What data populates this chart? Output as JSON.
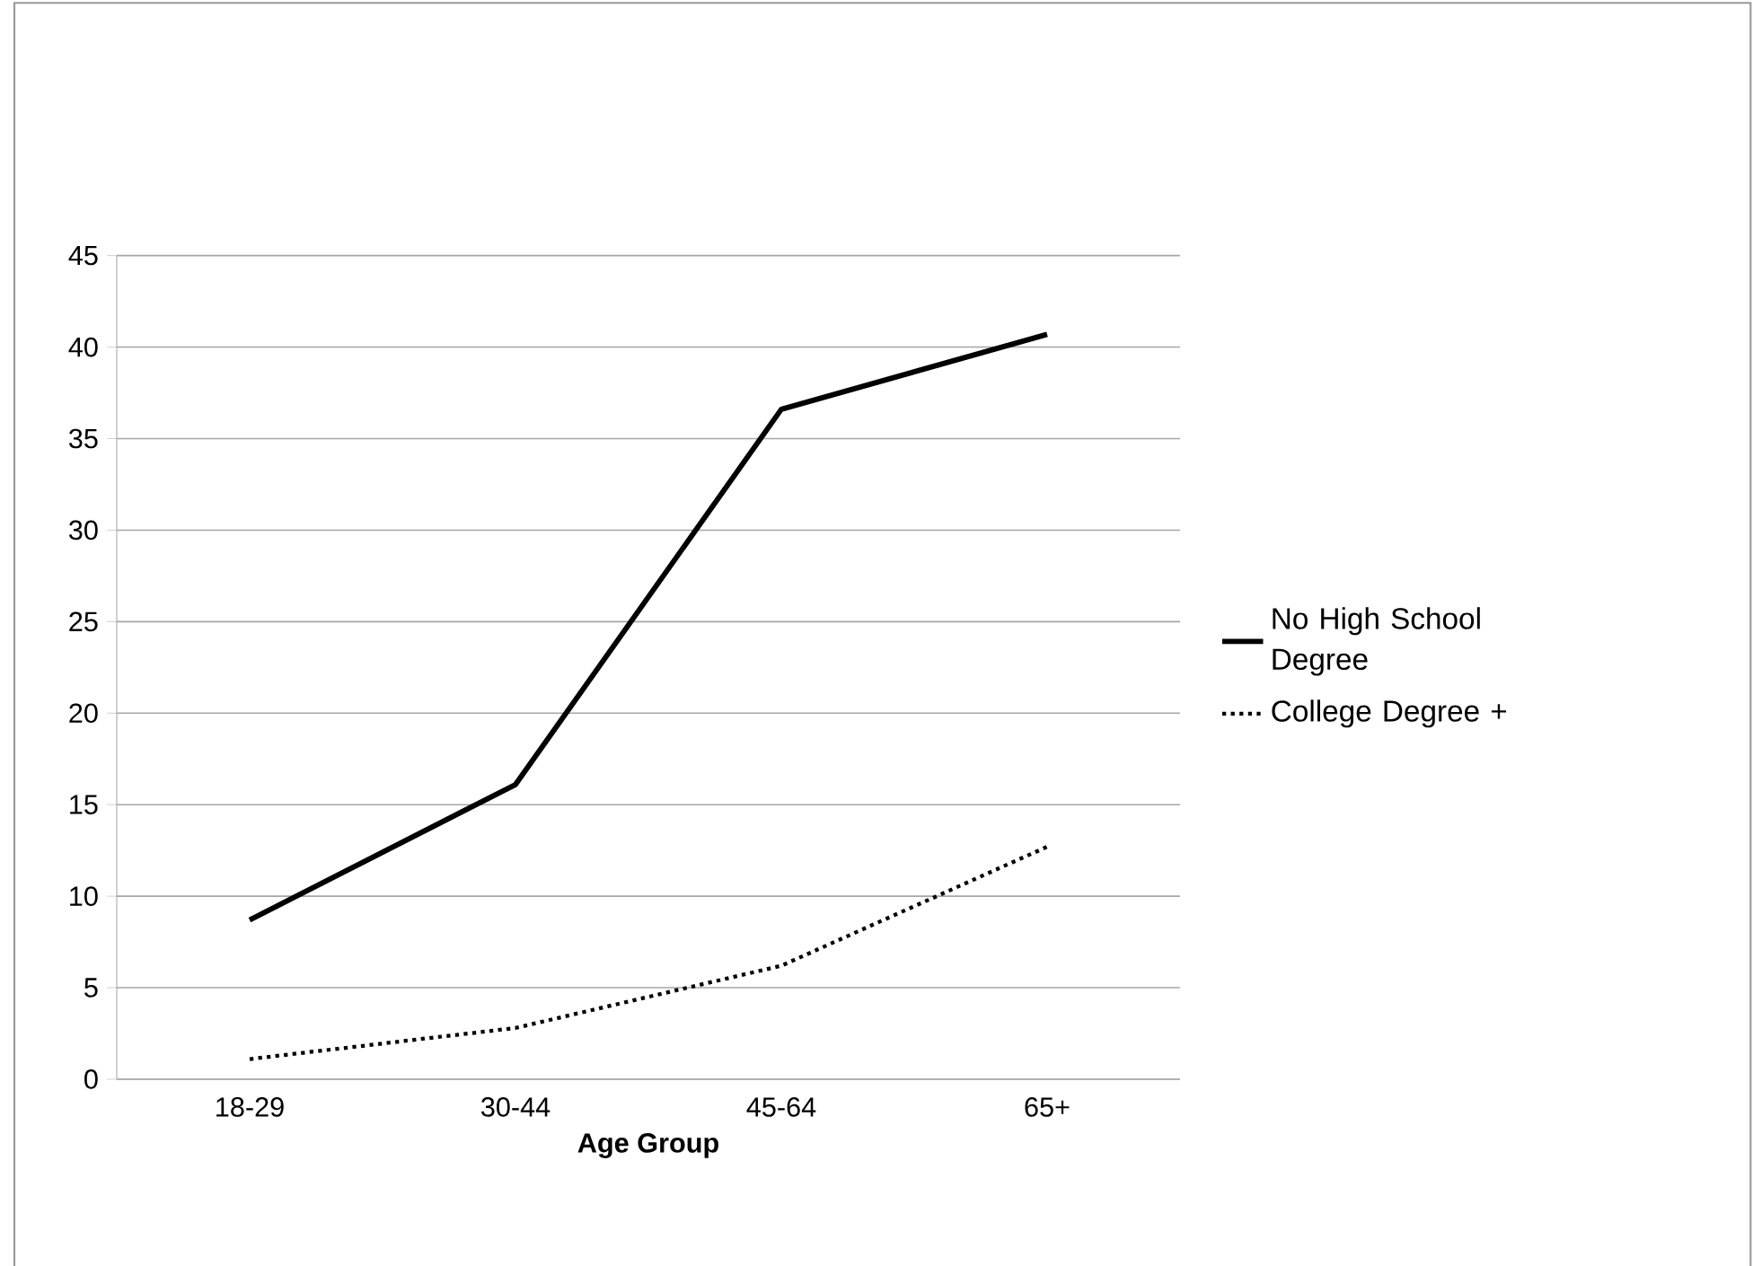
{
  "chart_data": {
    "type": "line",
    "xlabel": "Age Group",
    "categories": [
      "18-29",
      "30-44",
      "45-64",
      "65+"
    ],
    "series": [
      {
        "name": "No High School Degree",
        "color": "#000000",
        "line_style": "solid",
        "values": [
          8.7,
          16.1,
          36.6,
          40.7
        ]
      },
      {
        "name": "College Degree +",
        "color": "#000000",
        "line_style": "dotted",
        "values": [
          1.1,
          2.8,
          6.2,
          12.7
        ]
      }
    ],
    "ylim": [
      0,
      45
    ],
    "yticks": [
      0,
      5,
      10,
      15,
      20,
      25,
      30,
      35,
      40,
      45
    ],
    "grid": "y",
    "legend": "right"
  }
}
